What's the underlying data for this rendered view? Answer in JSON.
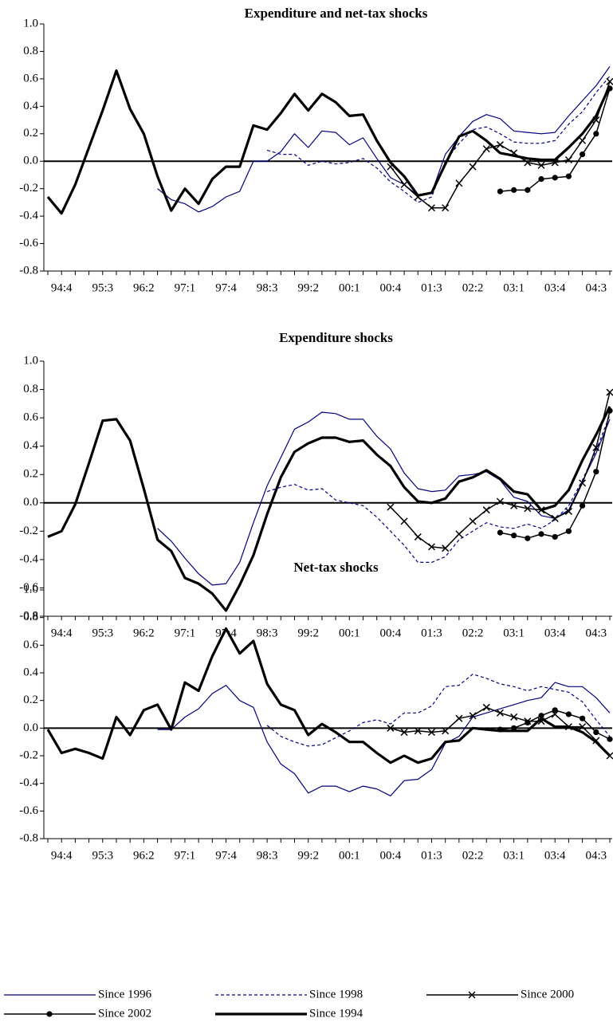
{
  "chart_data": [
    {
      "type": "line",
      "title": "Expenditure and net-tax shocks",
      "categories": [
        null,
        "94:4",
        null,
        null,
        "95:3",
        null,
        null,
        "96:2",
        null,
        null,
        "97:1",
        null,
        null,
        "97:4",
        null,
        null,
        "98:3",
        null,
        null,
        "99:2",
        null,
        null,
        "00:1",
        null,
        null,
        "00:4",
        null,
        null,
        "01:3",
        null,
        null,
        "02:2",
        null,
        null,
        "03:1",
        null,
        null,
        "03:4",
        null,
        null,
        "04:3",
        null
      ],
      "ylim": [
        -0.8,
        1.0
      ],
      "yticks": [
        -0.8,
        -0.6,
        -0.4,
        -0.2,
        {
          "value": 0,
          "label": "0.0"
        },
        0.2,
        0.4,
        0.6,
        0.8,
        {
          "value": 1,
          "label": "1.0"
        }
      ],
      "series": [
        {
          "color": "#000080",
          "line_width": 1.2,
          "dash": "solid",
          "marker": "none",
          "values": [
            null,
            null,
            null,
            null,
            null,
            null,
            null,
            null,
            -0.2,
            -0.28,
            -0.31,
            -0.37,
            -0.33,
            -0.26,
            -0.22,
            0.0,
            0.0,
            0.07,
            0.2,
            0.1,
            0.22,
            0.21,
            0.12,
            0.17,
            0.02,
            -0.12,
            -0.17,
            -0.25,
            -0.23,
            0.05,
            0.18,
            0.29,
            0.34,
            0.31,
            0.22,
            0.21,
            0.2,
            0.21,
            0.33,
            0.44,
            0.55,
            0.69
          ]
        },
        {
          "color": "#000080",
          "line_width": 1.2,
          "dash": "dashed",
          "marker": "none",
          "values": [
            null,
            null,
            null,
            null,
            null,
            null,
            null,
            null,
            null,
            null,
            null,
            null,
            null,
            null,
            null,
            null,
            0.08,
            0.05,
            0.05,
            -0.03,
            0.0,
            -0.02,
            -0.01,
            0.02,
            -0.05,
            -0.15,
            -0.22,
            -0.3,
            -0.26,
            0.0,
            0.13,
            0.23,
            0.25,
            0.2,
            0.14,
            0.13,
            0.13,
            0.15,
            0.27,
            0.36,
            0.5,
            0.62
          ]
        },
        {
          "color": "#000000",
          "line_width": 1.5,
          "dash": "solid",
          "marker": "x",
          "values": [
            null,
            null,
            null,
            null,
            null,
            null,
            null,
            null,
            null,
            null,
            null,
            null,
            null,
            null,
            null,
            null,
            null,
            null,
            null,
            null,
            null,
            null,
            null,
            null,
            null,
            -0.04,
            -0.17,
            -0.26,
            -0.34,
            -0.34,
            -0.16,
            -0.04,
            0.09,
            0.12,
            0.06,
            -0.01,
            -0.03,
            -0.01,
            0.01,
            0.15,
            0.3,
            0.58
          ]
        },
        {
          "color": "#000000",
          "line_width": 1.5,
          "dash": "solid",
          "marker": "circle",
          "values": [
            null,
            null,
            null,
            null,
            null,
            null,
            null,
            null,
            null,
            null,
            null,
            null,
            null,
            null,
            null,
            null,
            null,
            null,
            null,
            null,
            null,
            null,
            null,
            null,
            null,
            null,
            null,
            null,
            null,
            null,
            null,
            null,
            null,
            -0.22,
            -0.21,
            -0.21,
            -0.13,
            -0.12,
            -0.11,
            0.05,
            0.2,
            0.53
          ]
        },
        {
          "color": "#000000",
          "line_width": 3.2,
          "dash": "solid",
          "marker": "none",
          "values": [
            -0.26,
            -0.38,
            -0.17,
            0.1,
            0.37,
            0.66,
            0.38,
            0.2,
            -0.11,
            -0.36,
            -0.2,
            -0.31,
            -0.13,
            -0.04,
            -0.04,
            0.26,
            0.23,
            0.35,
            0.49,
            0.37,
            0.49,
            0.43,
            0.33,
            0.34,
            0.15,
            -0.01,
            -0.11,
            -0.25,
            -0.23,
            -0.02,
            0.18,
            0.22,
            0.15,
            0.06,
            0.04,
            0.02,
            0.01,
            0.01,
            0.1,
            0.2,
            0.33,
            0.55
          ]
        }
      ]
    },
    {
      "type": "line",
      "title": "Expenditure shocks",
      "categories": [
        null,
        "94:4",
        null,
        null,
        "95:3",
        null,
        null,
        "96:2",
        null,
        null,
        "97:1",
        null,
        null,
        "97:4",
        null,
        null,
        "98:3",
        null,
        null,
        "99:2",
        null,
        null,
        "00:1",
        null,
        null,
        "00:4",
        null,
        null,
        "01:3",
        null,
        null,
        "02:2",
        null,
        null,
        "03:1",
        null,
        null,
        "03:4",
        null,
        null,
        "04:3",
        null
      ],
      "ylim": [
        -0.8,
        1.0
      ],
      "yticks": [
        -0.8,
        -0.6,
        -0.4,
        -0.2,
        {
          "value": 0,
          "label": "0.0"
        },
        0.2,
        0.4,
        0.6,
        0.8,
        {
          "value": 1,
          "label": "1.0"
        }
      ],
      "series": [
        {
          "color": "#000080",
          "line_width": 1.2,
          "dash": "solid",
          "marker": "none",
          "values": [
            null,
            null,
            null,
            null,
            null,
            null,
            null,
            null,
            -0.18,
            -0.27,
            -0.39,
            -0.5,
            -0.58,
            -0.57,
            -0.42,
            -0.14,
            0.12,
            0.32,
            0.52,
            0.57,
            0.64,
            0.63,
            0.59,
            0.59,
            0.47,
            0.38,
            0.21,
            0.1,
            0.08,
            0.09,
            0.19,
            0.2,
            0.22,
            0.16,
            0.04,
            0.01,
            -0.09,
            -0.11,
            -0.05,
            0.15,
            0.35,
            0.59
          ]
        },
        {
          "color": "#000080",
          "line_width": 1.2,
          "dash": "dashed",
          "marker": "none",
          "values": [
            null,
            null,
            null,
            null,
            null,
            null,
            null,
            null,
            null,
            null,
            null,
            null,
            null,
            null,
            null,
            null,
            0.08,
            0.11,
            0.13,
            0.09,
            0.1,
            0.02,
            0.0,
            -0.02,
            -0.1,
            -0.2,
            -0.3,
            -0.42,
            -0.42,
            -0.38,
            -0.26,
            -0.2,
            -0.14,
            -0.17,
            -0.18,
            -0.15,
            -0.18,
            -0.12,
            -0.02,
            0.16,
            0.37,
            0.62
          ]
        },
        {
          "color": "#000000",
          "line_width": 1.5,
          "dash": "solid",
          "marker": "x",
          "values": [
            null,
            null,
            null,
            null,
            null,
            null,
            null,
            null,
            null,
            null,
            null,
            null,
            null,
            null,
            null,
            null,
            null,
            null,
            null,
            null,
            null,
            null,
            null,
            null,
            null,
            -0.03,
            -0.13,
            -0.24,
            -0.31,
            -0.32,
            -0.22,
            -0.13,
            -0.05,
            0.01,
            -0.02,
            -0.04,
            -0.05,
            -0.11,
            -0.06,
            0.14,
            0.39,
            0.78
          ]
        },
        {
          "color": "#000000",
          "line_width": 1.5,
          "dash": "solid",
          "marker": "circle",
          "values": [
            null,
            null,
            null,
            null,
            null,
            null,
            null,
            null,
            null,
            null,
            null,
            null,
            null,
            null,
            null,
            null,
            null,
            null,
            null,
            null,
            null,
            null,
            null,
            null,
            null,
            null,
            null,
            null,
            null,
            null,
            null,
            null,
            null,
            -0.21,
            -0.23,
            -0.25,
            -0.22,
            -0.24,
            -0.2,
            -0.02,
            0.22,
            0.65
          ]
        },
        {
          "color": "#000000",
          "line_width": 3.2,
          "dash": "solid",
          "marker": "none",
          "values": [
            -0.24,
            -0.2,
            -0.01,
            0.28,
            0.58,
            0.59,
            0.44,
            0.1,
            -0.26,
            -0.34,
            -0.53,
            -0.57,
            -0.64,
            -0.76,
            -0.58,
            -0.37,
            -0.08,
            0.18,
            0.36,
            0.42,
            0.46,
            0.46,
            0.43,
            0.44,
            0.34,
            0.26,
            0.11,
            0.01,
            0.0,
            0.03,
            0.15,
            0.18,
            0.23,
            0.17,
            0.08,
            0.06,
            -0.05,
            -0.02,
            0.09,
            0.3,
            0.48,
            0.68
          ]
        }
      ]
    },
    {
      "type": "line",
      "title": "Net-tax shocks",
      "categories": [
        null,
        "94:4",
        null,
        null,
        "95:3",
        null,
        null,
        "96:2",
        null,
        null,
        "97:1",
        null,
        null,
        "97:4",
        null,
        null,
        "98:3",
        null,
        null,
        "99:2",
        null,
        null,
        "00:1",
        null,
        null,
        "00:4",
        null,
        null,
        "01:3",
        null,
        null,
        "02:2",
        null,
        null,
        "03:1",
        null,
        null,
        "03:4",
        null,
        null,
        "04:3",
        null
      ],
      "ylim": [
        -0.8,
        1.0
      ],
      "yticks": [
        -0.8,
        -0.6,
        -0.4,
        -0.2,
        {
          "value": 0,
          "label": "0.0"
        },
        0.2,
        0.4,
        0.6,
        0.8,
        {
          "value": 1,
          "label": "1.0"
        }
      ],
      "series": [
        {
          "name": "Since 1996",
          "color": "#000080",
          "line_width": 1.2,
          "dash": "solid",
          "marker": "none",
          "values": [
            null,
            null,
            null,
            null,
            null,
            null,
            null,
            null,
            -0.01,
            -0.01,
            0.08,
            0.14,
            0.25,
            0.31,
            0.2,
            0.15,
            -0.1,
            -0.26,
            -0.33,
            -0.47,
            -0.42,
            -0.42,
            -0.46,
            -0.42,
            -0.44,
            -0.49,
            -0.38,
            -0.37,
            -0.3,
            -0.11,
            -0.06,
            0.08,
            0.11,
            0.14,
            0.17,
            0.2,
            0.22,
            0.33,
            0.3,
            0.3,
            0.22,
            0.11
          ]
        },
        {
          "name": "Since 1998",
          "color": "#000080",
          "line_width": 1.2,
          "dash": "dashed",
          "marker": "none",
          "values": [
            null,
            null,
            null,
            null,
            null,
            null,
            null,
            null,
            null,
            null,
            null,
            null,
            null,
            null,
            null,
            null,
            0.02,
            -0.06,
            -0.1,
            -0.13,
            -0.12,
            -0.07,
            -0.02,
            0.04,
            0.06,
            0.03,
            0.11,
            0.11,
            0.16,
            0.3,
            0.31,
            0.39,
            0.36,
            0.32,
            0.3,
            0.27,
            0.3,
            0.28,
            0.26,
            0.19,
            0.06,
            -0.06
          ]
        },
        {
          "name": "Since 2000",
          "color": "#000000",
          "line_width": 1.5,
          "dash": "solid",
          "marker": "x",
          "values": [
            null,
            null,
            null,
            null,
            null,
            null,
            null,
            null,
            null,
            null,
            null,
            null,
            null,
            null,
            null,
            null,
            null,
            null,
            null,
            null,
            null,
            null,
            null,
            null,
            null,
            0.0,
            -0.03,
            -0.02,
            -0.03,
            -0.02,
            0.07,
            0.09,
            0.15,
            0.11,
            0.08,
            0.05,
            0.05,
            0.1,
            0.01,
            0.01,
            -0.09,
            -0.2
          ]
        },
        {
          "name": "Since 2002",
          "color": "#000000",
          "line_width": 1.5,
          "dash": "solid",
          "marker": "circle",
          "values": [
            null,
            null,
            null,
            null,
            null,
            null,
            null,
            null,
            null,
            null,
            null,
            null,
            null,
            null,
            null,
            null,
            null,
            null,
            null,
            null,
            null,
            null,
            null,
            null,
            null,
            null,
            null,
            null,
            null,
            null,
            null,
            null,
            null,
            -0.01,
            0.0,
            0.04,
            0.09,
            0.13,
            0.1,
            0.07,
            -0.03,
            -0.08
          ]
        },
        {
          "name": "Since 1994",
          "color": "#000000",
          "line_width": 3.2,
          "dash": "solid",
          "marker": "none",
          "values": [
            -0.01,
            -0.18,
            -0.15,
            -0.18,
            -0.22,
            0.08,
            -0.05,
            0.13,
            0.17,
            -0.01,
            0.33,
            0.27,
            0.52,
            0.72,
            0.54,
            0.63,
            0.32,
            0.17,
            0.13,
            -0.05,
            0.03,
            -0.03,
            -0.1,
            -0.1,
            -0.18,
            -0.25,
            -0.2,
            -0.25,
            -0.22,
            -0.1,
            -0.09,
            0.0,
            -0.01,
            -0.02,
            -0.02,
            -0.02,
            0.07,
            0.01,
            0.01,
            -0.03,
            -0.1,
            -0.2
          ]
        }
      ]
    }
  ]
}
